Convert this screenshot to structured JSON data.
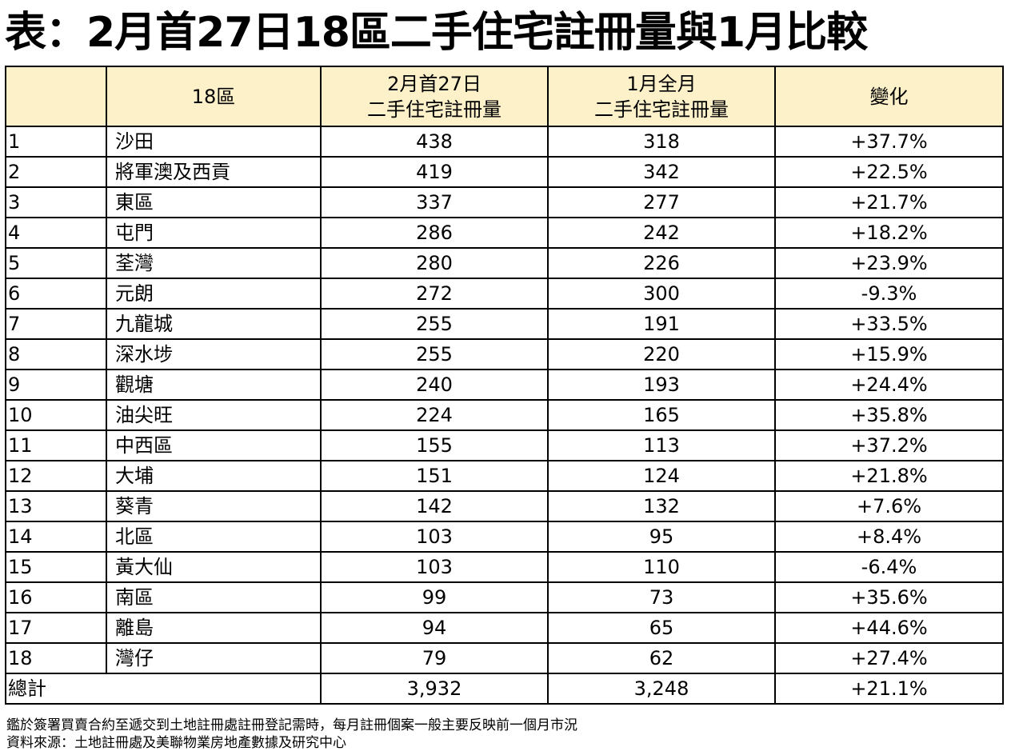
{
  "title": "表：2月首27日18區二手住宅註冊量與1月比較",
  "chart_data": {
    "type": "table",
    "title": "表：2月首27日18區二手住宅註冊量與1月比較",
    "columns": [
      "",
      "18區",
      "2月首27日\n二手住宅註冊量",
      "1月全月\n二手住宅註冊量",
      "變化"
    ],
    "rows": [
      [
        "1",
        "沙田",
        "438",
        "318",
        "+37.7%"
      ],
      [
        "2",
        "將軍澳及西貢",
        "419",
        "342",
        "+22.5%"
      ],
      [
        "3",
        "東區",
        "337",
        "277",
        "+21.7%"
      ],
      [
        "4",
        "屯門",
        "286",
        "242",
        "+18.2%"
      ],
      [
        "5",
        "荃灣",
        "280",
        "226",
        "+23.9%"
      ],
      [
        "6",
        "元朗",
        "272",
        "300",
        "-9.3%"
      ],
      [
        "7",
        "九龍城",
        "255",
        "191",
        "+33.5%"
      ],
      [
        "8",
        "深水埗",
        "255",
        "220",
        "+15.9%"
      ],
      [
        "9",
        "觀塘",
        "240",
        "193",
        "+24.4%"
      ],
      [
        "10",
        "油尖旺",
        "224",
        "165",
        "+35.8%"
      ],
      [
        "11",
        "中西區",
        "155",
        "113",
        "+37.2%"
      ],
      [
        "12",
        "大埔",
        "151",
        "124",
        "+21.8%"
      ],
      [
        "13",
        "葵青",
        "142",
        "132",
        "+7.6%"
      ],
      [
        "14",
        "北區",
        "103",
        "95",
        "+8.4%"
      ],
      [
        "15",
        "黃大仙",
        "103",
        "110",
        "-6.4%"
      ],
      [
        "16",
        "南區",
        "99",
        "73",
        "+35.6%"
      ],
      [
        "17",
        "離島",
        "94",
        "65",
        "+44.6%"
      ],
      [
        "18",
        "灣仔",
        "79",
        "62",
        "+27.4%"
      ]
    ],
    "total": [
      "總計",
      "3,932",
      "3,248",
      "+21.1%"
    ],
    "header_color": "#fdf1c9"
  },
  "notes": [
    "鑑於簽署買賣合約至遞交到土地註冊處註冊登記需時，每月註冊個案一般主要反映前一個月市況",
    "資料來源：土地註冊處及美聯物業房地產數據及研究中心"
  ]
}
